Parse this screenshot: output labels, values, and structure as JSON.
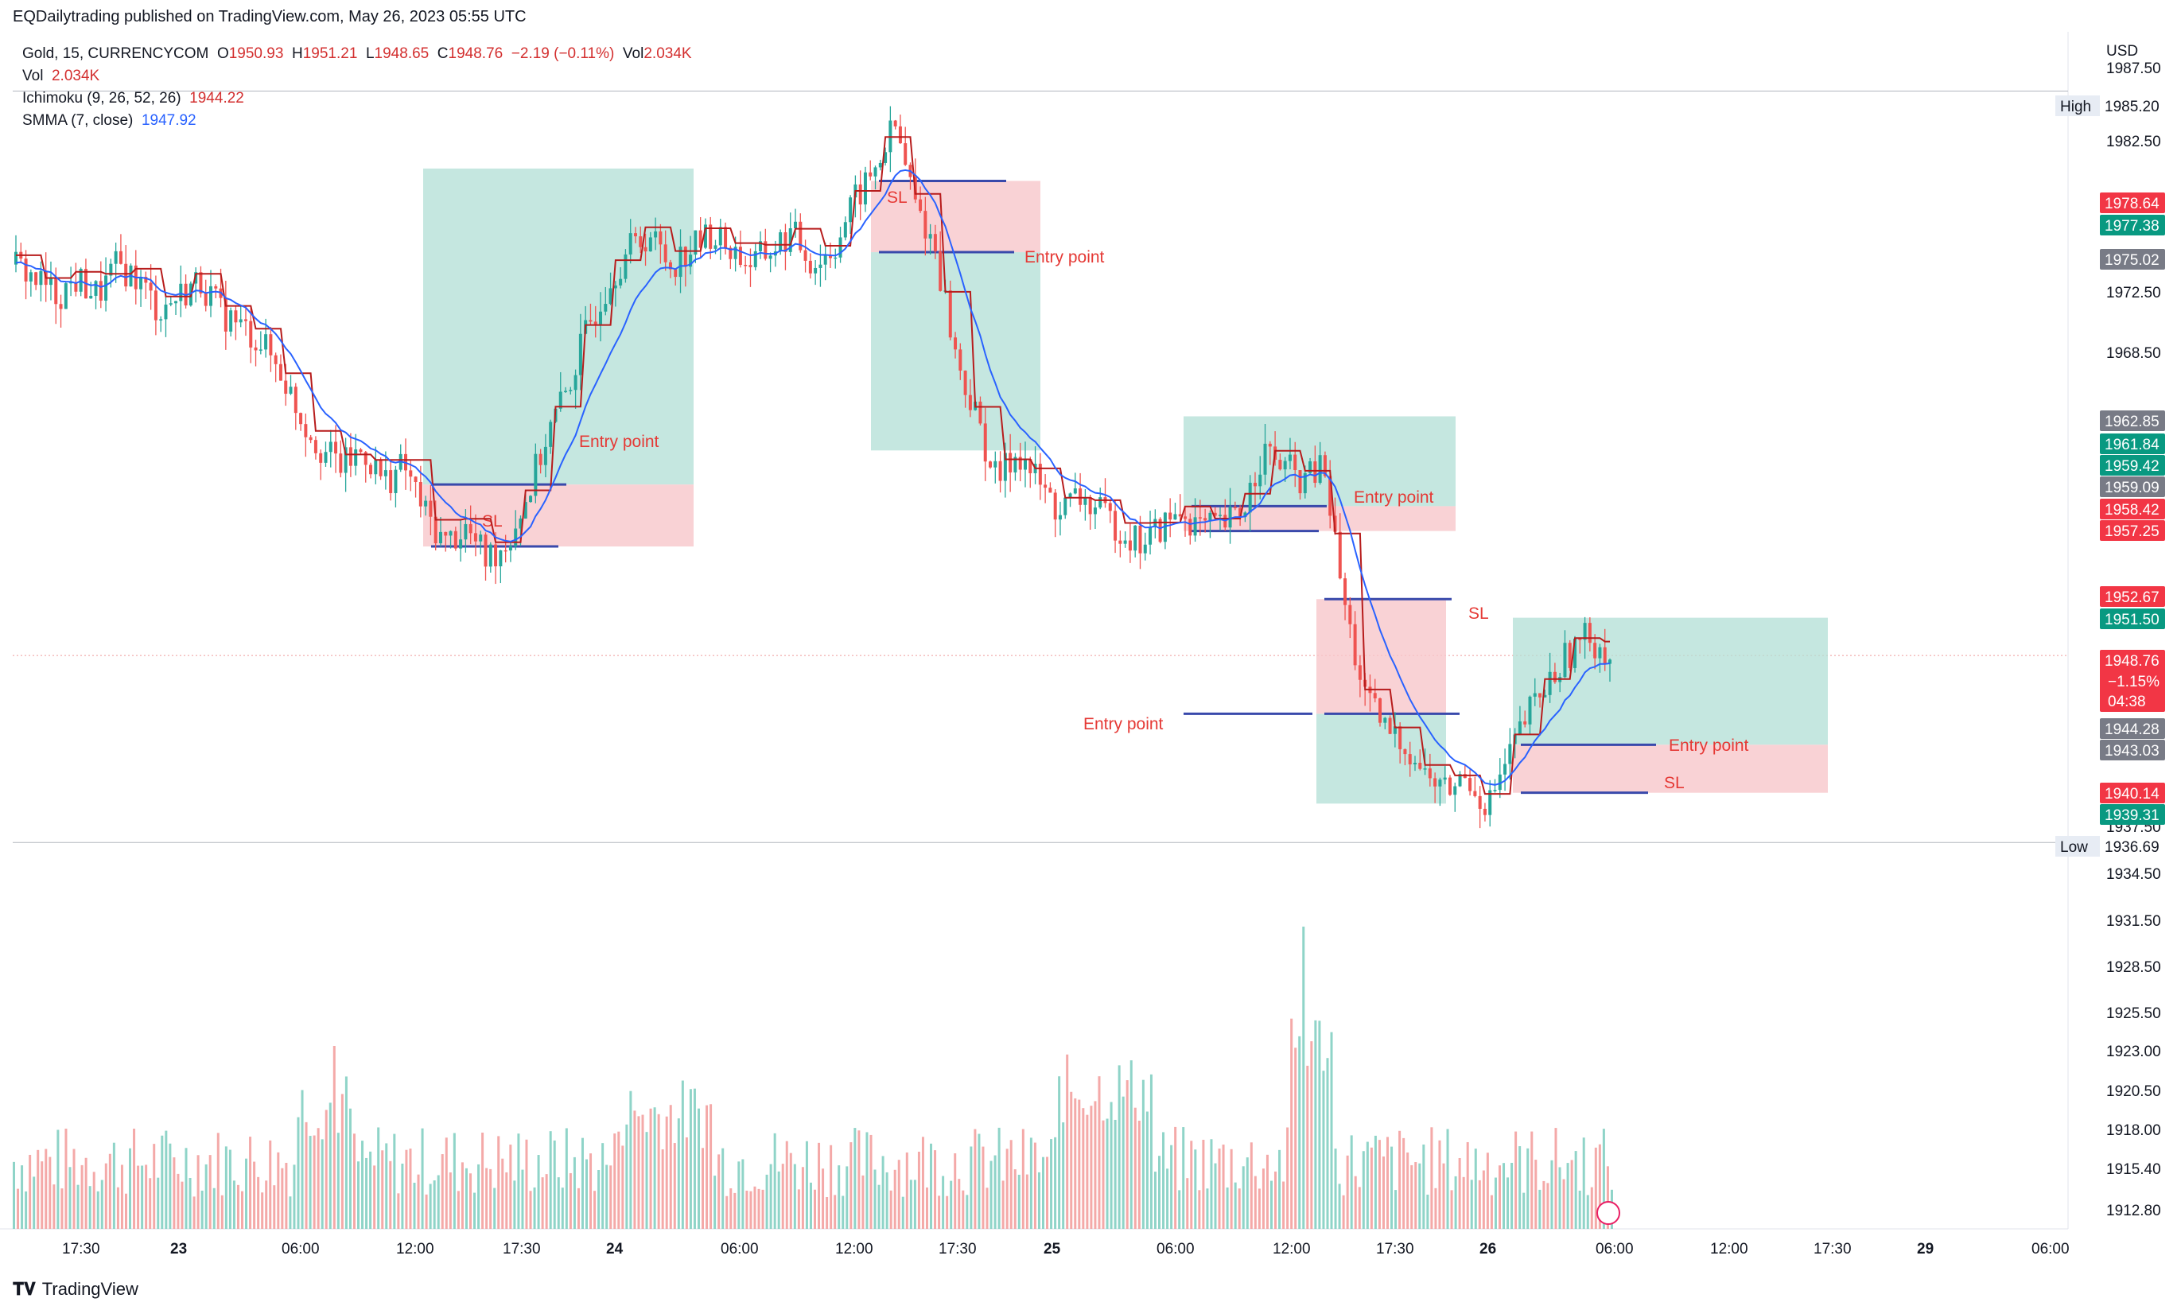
{
  "header": {
    "published": "EQDailytrading published on TradingView.com, May 26, 2023 05:55 UTC"
  },
  "legend": {
    "symbol": "Gold, 15, CURRENCYCOM",
    "open_label": "O",
    "open": "1950.93",
    "high_label": "H",
    "high": "1951.21",
    "low_label": "L",
    "low": "1948.65",
    "close_label": "C",
    "close": "1948.76",
    "change": "−2.19 (−0.11%)",
    "vol_label": "Vol",
    "vol": "2.034K",
    "vol_line_label": "Vol",
    "vol_line_value": "2.034K",
    "ichimoku_label": "Ichimoku (9, 26, 52, 26)",
    "ichimoku_value": "1944.22",
    "smma_label": "SMMA (7, close)",
    "smma_value": "1947.92"
  },
  "axis": {
    "currency": "USD",
    "price_ticks": [
      "1987.50",
      "1982.50",
      "1972.50",
      "1968.50",
      "1958.50",
      "1937.50",
      "1934.50",
      "1931.50",
      "1928.50",
      "1925.50",
      "1923.00",
      "1920.50",
      "1918.00",
      "1915.40",
      "1912.80"
    ],
    "time_ticks": [
      "17:30",
      "23",
      "06:00",
      "12:00",
      "17:30",
      "24",
      "06:00",
      "12:00",
      "17:30",
      "25",
      "06:00",
      "12:00",
      "17:30",
      "26",
      "06:00",
      "12:00",
      "17:30",
      "29",
      "06:00"
    ]
  },
  "price_labels": [
    {
      "text": "High",
      "value": "1985.20",
      "kind": "high"
    },
    {
      "text": "",
      "value": "1978.64",
      "kind": "red"
    },
    {
      "text": "",
      "value": "1977.38",
      "kind": "green"
    },
    {
      "text": "",
      "value": "1975.02",
      "kind": "gray"
    },
    {
      "text": "",
      "value": "1962.85",
      "kind": "gray"
    },
    {
      "text": "",
      "value": "1961.84",
      "kind": "green"
    },
    {
      "text": "",
      "value": "1959.42",
      "kind": "green"
    },
    {
      "text": "",
      "value": "1959.09",
      "kind": "gray"
    },
    {
      "text": "",
      "value": "1958.42",
      "kind": "red"
    },
    {
      "text": "",
      "value": "1957.25",
      "kind": "red"
    },
    {
      "text": "",
      "value": "1952.67",
      "kind": "red"
    },
    {
      "text": "",
      "value": "1951.50",
      "kind": "green"
    },
    {
      "text": "",
      "value": "1948.76",
      "kind": "red",
      "extra": [
        "−1.15%",
        "04:38"
      ]
    },
    {
      "text": "",
      "value": "1944.28",
      "kind": "gray"
    },
    {
      "text": "",
      "value": "1943.03",
      "kind": "gray"
    },
    {
      "text": "",
      "value": "1940.14",
      "kind": "red"
    },
    {
      "text": "",
      "value": "1939.31",
      "kind": "green"
    },
    {
      "text": "Low",
      "value": "1936.69",
      "kind": "low"
    }
  ],
  "annotations": {
    "entry": "Entry point",
    "sl": "SL"
  },
  "colors": {
    "up": "#26a69a",
    "down": "#ef5350",
    "vol_up": "#8fd4c8",
    "vol_down": "#f4a9a8",
    "kijun": "#b71c1c",
    "smma": "#2962ff",
    "target_zone": "#b2dfd6",
    "stop_zone": "#f8c7cb",
    "entry_line": "#3949ab"
  },
  "chart_data": {
    "type": "candlestick",
    "title": "Gold, 15, CURRENCYCOM",
    "ylabel": "USD",
    "ylim": [
      1912.0,
      1988.0
    ],
    "x_labels": [
      "17:30",
      "23",
      "06:00",
      "12:00",
      "17:30",
      "24",
      "06:00",
      "12:00",
      "17:30",
      "25",
      "06:00",
      "12:00",
      "17:30",
      "26",
      "06:00",
      "12:00",
      "17:30",
      "29",
      "06:00"
    ],
    "close_path": [
      1974,
      1973,
      1972,
      1973,
      1972,
      1974,
      1973,
      1971,
      1972,
      1973,
      1971,
      1970,
      1969,
      1967,
      1964,
      1962,
      1961,
      1962,
      1960,
      1961,
      1958,
      1956,
      1957,
      1955,
      1956,
      1959,
      1963,
      1966,
      1970,
      1973,
      1975,
      1976,
      1974,
      1975,
      1976,
      1975,
      1974,
      1975,
      1976,
      1974,
      1975,
      1978,
      1980,
      1983,
      1978,
      1975,
      1968,
      1964,
      1960,
      1962,
      1960,
      1958,
      1959,
      1958,
      1957,
      1956,
      1957,
      1958,
      1957,
      1957,
      1958,
      1962,
      1961,
      1960,
      1961,
      1952,
      1946,
      1944,
      1943,
      1941,
      1940,
      1941,
      1939,
      1942,
      1945,
      1947,
      1949,
      1950,
      1948.76
    ],
    "trades": [
      {
        "direction": "long",
        "entry": "Entry point",
        "stop": "SL"
      },
      {
        "direction": "short",
        "entry": "Entry point",
        "stop": "SL"
      },
      {
        "direction": "long",
        "entry": "Entry point",
        "stop": ""
      },
      {
        "direction": "short",
        "entry": "Entry point",
        "stop": "SL"
      },
      {
        "direction": "long",
        "entry": "Entry point",
        "stop": "SL"
      }
    ],
    "high": 1985.2,
    "low": 1936.69,
    "last": 1948.76
  },
  "footer": {
    "logo_text": "TradingView"
  }
}
